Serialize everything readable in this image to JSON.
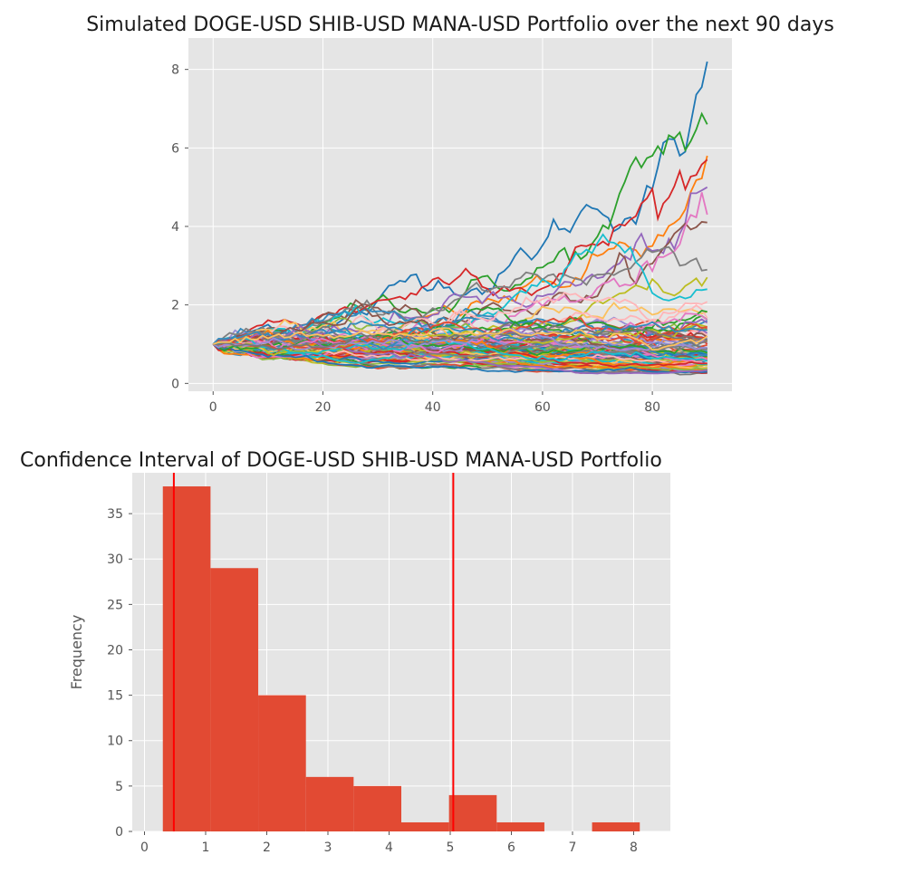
{
  "chart_data": [
    {
      "type": "line",
      "title": "Simulated DOGE-USD SHIB-USD MANA-USD Portfolio over the next 90 days",
      "xlabel": "",
      "ylabel": "",
      "xlim": [
        -4.5,
        94.5
      ],
      "ylim": [
        -0.2,
        8.8
      ],
      "xticks": [
        0,
        20,
        40,
        60,
        80
      ],
      "yticks": [
        0,
        2,
        4,
        6,
        8
      ],
      "grid": true,
      "legend": "none",
      "n_steps": 90,
      "n_simulations": 100,
      "series_colors": [
        "#1f77b4",
        "#ff7f0e",
        "#2ca02c",
        "#d62728",
        "#9467bd",
        "#8c564b",
        "#e377c2",
        "#7f7f7f",
        "#bcbd22",
        "#17becf",
        "#e24a33",
        "#348abd",
        "#988ed5",
        "#777777",
        "#fbc15e",
        "#8eba42",
        "#ffb5b8"
      ],
      "highlight_final_values": [
        8.2,
        5.8,
        6.6,
        5.7,
        5.0,
        4.1,
        4.3,
        2.9,
        2.7,
        2.4
      ]
    },
    {
      "type": "bar",
      "title": "Confidence Interval of DOGE-USD SHIB-USD MANA-USD Portfolio",
      "xlabel": "",
      "ylabel": "Frequency",
      "xlim": [
        -0.2,
        8.6
      ],
      "ylim": [
        0,
        39.5
      ],
      "xticks": [
        0,
        1,
        2,
        3,
        4,
        5,
        6,
        7,
        8
      ],
      "yticks": [
        0,
        5,
        10,
        15,
        20,
        25,
        30,
        35
      ],
      "grid": true,
      "bin_edges": [
        0.3,
        1.08,
        1.86,
        2.64,
        3.42,
        4.2,
        4.98,
        5.76,
        6.54,
        7.32,
        8.1
      ],
      "values": [
        38,
        29,
        15,
        6,
        5,
        1,
        4,
        1,
        0,
        1
      ],
      "bar_color": "#e24a33",
      "vlines": [
        0.48,
        5.05
      ],
      "vline_color": "#ff0000"
    }
  ]
}
